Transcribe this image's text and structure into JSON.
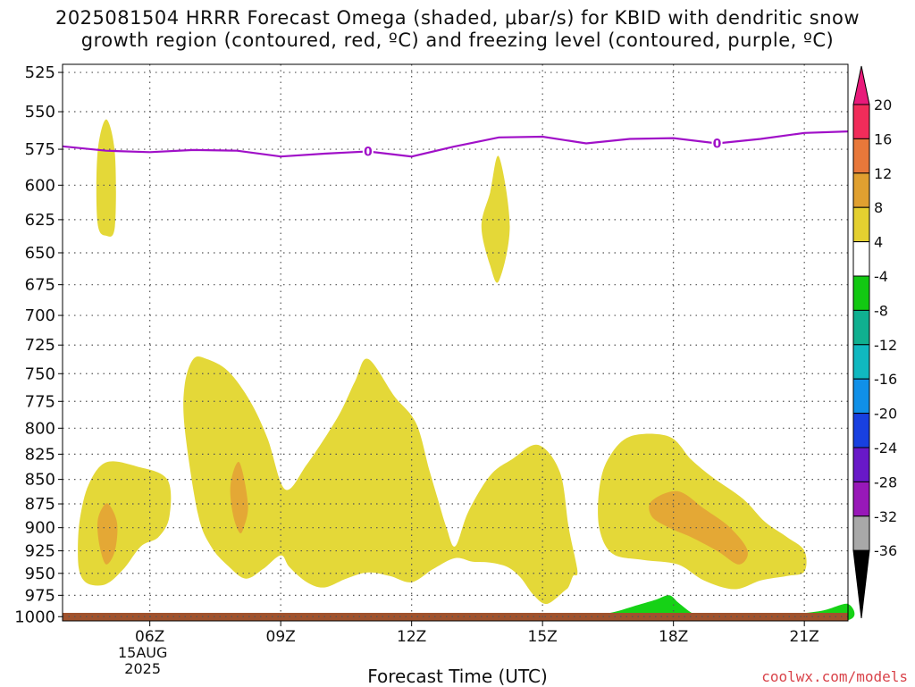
{
  "title_line1": "2025081504 HRRR Forecast Omega (shaded, μbar/s) for KBID with dendritic snow",
  "title_line2": "growth region (contoured, red, ºC) and freezing level (contoured, purple, ºC)",
  "credit": "coolwx.com/models",
  "chart_data": {
    "type": "heatmap",
    "title": "2025081504 HRRR Forecast Omega (shaded, μbar/s) for KBID with dendritic snow growth region (contoured, red, ºC) and freezing level (contoured, purple, ºC)",
    "xlabel": "Forecast Time (UTC)",
    "ylabel": "",
    "x_range_hours_utc": [
      4,
      22
    ],
    "y_range_hPa": [
      1005,
      520
    ],
    "y_scale": "log-pressure (inverted)",
    "grid": true,
    "y_ticks": [
      525,
      550,
      575,
      600,
      625,
      650,
      675,
      700,
      725,
      750,
      775,
      800,
      825,
      850,
      875,
      900,
      925,
      950,
      975,
      1000
    ],
    "x_ticks": [
      {
        "hour": 6,
        "label": "06Z",
        "sub1": "15AUG",
        "sub2": "2025"
      },
      {
        "hour": 9,
        "label": "09Z"
      },
      {
        "hour": 12,
        "label": "12Z"
      },
      {
        "hour": 15,
        "label": "15Z"
      },
      {
        "hour": 18,
        "label": "18Z"
      },
      {
        "hour": 21,
        "label": "21Z"
      }
    ],
    "colorbar": {
      "labels": [
        "20",
        "16",
        "12",
        "8",
        "4",
        "-4",
        "-8",
        "-12",
        "-16",
        "-20",
        "-24",
        "-28",
        "-32",
        "-36"
      ],
      "colors": [
        "#f12c5a",
        "#e8783a",
        "#e0a030",
        "#e4d030",
        "#ffffff",
        "#12c812",
        "#10b090",
        "#10b8c0",
        "#1090e8",
        "#1840e0",
        "#6818c8",
        "#9818b8",
        "#a8a8a8"
      ],
      "top_arrow_color": "#e81a7a",
      "bottom_arrow_color": "#000000"
    },
    "freezing_level": {
      "label": "0",
      "color": "#a010c8",
      "label_hours": [
        11,
        19
      ],
      "points": [
        [
          4,
          573
        ],
        [
          5,
          576
        ],
        [
          6,
          577
        ],
        [
          7,
          575.5
        ],
        [
          8,
          576
        ],
        [
          9,
          580
        ],
        [
          10,
          578
        ],
        [
          11,
          576.5
        ],
        [
          12,
          580
        ],
        [
          13,
          573
        ],
        [
          14,
          567
        ],
        [
          15,
          566.5
        ],
        [
          16,
          571
        ],
        [
          17,
          568
        ],
        [
          18,
          567.5
        ],
        [
          19,
          571
        ],
        [
          20,
          568
        ],
        [
          21,
          564
        ],
        [
          22,
          563
        ]
      ]
    },
    "regions": [
      {
        "value_range": "4 to 8",
        "color": "#e4d838",
        "outline": [
          [
            5.0,
            555
          ],
          [
            5.2,
            578
          ],
          [
            5.2,
            630
          ],
          [
            5.0,
            637
          ],
          [
            4.8,
            627
          ],
          [
            4.8,
            578
          ]
        ]
      },
      {
        "value_range": "4 to 8",
        "color": "#e4d838",
        "outline": [
          [
            14.0,
            580
          ],
          [
            14.25,
            630
          ],
          [
            14.0,
            672
          ],
          [
            13.8,
            660
          ],
          [
            13.6,
            630
          ],
          [
            13.8,
            605
          ]
        ]
      },
      {
        "value_range": "4 to 8",
        "color": "#e4d838",
        "outline": [
          [
            5.0,
            833
          ],
          [
            5.7,
            837
          ],
          [
            6.4,
            850
          ],
          [
            6.45,
            888
          ],
          [
            6.2,
            910
          ],
          [
            5.8,
            920
          ],
          [
            5.4,
            945
          ],
          [
            5.0,
            962
          ],
          [
            4.6,
            962
          ],
          [
            4.4,
            950
          ],
          [
            4.35,
            925
          ],
          [
            4.4,
            890
          ],
          [
            4.6,
            855
          ]
        ]
      },
      {
        "value_range": "4 to 8",
        "color": "#e4d838",
        "outline": [
          [
            7.3,
            737
          ],
          [
            7.8,
            748
          ],
          [
            8.3,
            775
          ],
          [
            8.7,
            810
          ],
          [
            9.1,
            860
          ],
          [
            9.6,
            835
          ],
          [
            10.3,
            790
          ],
          [
            10.7,
            757
          ],
          [
            11.0,
            737
          ],
          [
            11.6,
            770
          ],
          [
            12.1,
            795
          ],
          [
            12.4,
            840
          ],
          [
            12.6,
            870
          ],
          [
            12.8,
            900
          ],
          [
            13.0,
            920
          ],
          [
            13.3,
            883
          ],
          [
            13.8,
            846
          ],
          [
            14.3,
            830
          ],
          [
            14.9,
            816
          ],
          [
            15.4,
            843
          ],
          [
            15.6,
            900
          ],
          [
            15.8,
            947
          ],
          [
            15.7,
            953
          ],
          [
            15.6,
            965
          ],
          [
            15.5,
            970
          ],
          [
            15.1,
            985
          ],
          [
            14.8,
            975
          ],
          [
            14.5,
            955
          ],
          [
            14.2,
            943
          ],
          [
            13.8,
            938
          ],
          [
            13.4,
            937
          ],
          [
            13.0,
            933
          ],
          [
            12.5,
            945
          ],
          [
            12.0,
            960
          ],
          [
            11.5,
            953
          ],
          [
            11.0,
            949
          ],
          [
            10.5,
            956
          ],
          [
            10.0,
            966
          ],
          [
            9.6,
            960
          ],
          [
            9.2,
            943
          ],
          [
            9.0,
            930
          ],
          [
            8.6,
            945
          ],
          [
            8.2,
            956
          ],
          [
            7.8,
            942
          ],
          [
            7.4,
            920
          ],
          [
            7.1,
            885
          ],
          [
            6.8,
            800
          ],
          [
            6.8,
            760
          ],
          [
            7.0,
            737
          ]
        ]
      },
      {
        "value_range": "4 to 8",
        "color": "#e4d838",
        "outline": [
          [
            17.0,
            808
          ],
          [
            17.9,
            808
          ],
          [
            18.4,
            830
          ],
          [
            18.9,
            848
          ],
          [
            19.6,
            870
          ],
          [
            20.1,
            894
          ],
          [
            20.6,
            910
          ],
          [
            21.0,
            925
          ],
          [
            21.0,
            948
          ],
          [
            20.6,
            953
          ],
          [
            20.0,
            958
          ],
          [
            19.4,
            968
          ],
          [
            18.7,
            958
          ],
          [
            18.1,
            940
          ],
          [
            17.3,
            935
          ],
          [
            16.6,
            928
          ],
          [
            16.3,
            900
          ],
          [
            16.3,
            860
          ],
          [
            16.5,
            830
          ]
        ]
      },
      {
        "value_range": "8 to 12",
        "color": "#e4a835",
        "outline": [
          [
            5.05,
            875
          ],
          [
            5.25,
            895
          ],
          [
            5.2,
            925
          ],
          [
            5.0,
            940
          ],
          [
            4.85,
            920
          ],
          [
            4.8,
            895
          ],
          [
            4.9,
            880
          ]
        ]
      },
      {
        "value_range": "8 to 12",
        "color": "#e4a835",
        "outline": [
          [
            8.05,
            833
          ],
          [
            8.25,
            875
          ],
          [
            8.15,
            900
          ],
          [
            8.05,
            905
          ],
          [
            7.9,
            885
          ],
          [
            7.85,
            855
          ]
        ]
      },
      {
        "value_range": "8 to 12",
        "color": "#e4a835",
        "outline": [
          [
            17.5,
            872
          ],
          [
            18.1,
            862
          ],
          [
            18.7,
            880
          ],
          [
            19.3,
            900
          ],
          [
            19.7,
            925
          ],
          [
            19.5,
            940
          ],
          [
            19.0,
            925
          ],
          [
            18.4,
            910
          ],
          [
            17.9,
            900
          ],
          [
            17.5,
            888
          ]
        ]
      },
      {
        "value_range": "-4 to -8",
        "color": "#16d216",
        "outline": [
          [
            16.0,
            1000
          ],
          [
            16.6,
            995
          ],
          [
            17.2,
            986
          ],
          [
            17.6,
            980
          ],
          [
            17.9,
            975
          ],
          [
            18.1,
            983
          ],
          [
            18.4,
            995
          ],
          [
            18.7,
            1003
          ],
          [
            18.1,
            1003
          ],
          [
            16.0,
            1003
          ]
        ]
      },
      {
        "value_range": "-4 to -8",
        "color": "#16d216",
        "outline": [
          [
            19.9,
            1003
          ],
          [
            20.6,
            998
          ],
          [
            21.4,
            993
          ],
          [
            22.0,
            985
          ],
          [
            22.0,
            1004
          ],
          [
            20.3,
            1004
          ]
        ]
      }
    ],
    "terrain_color": "#a0522d"
  }
}
